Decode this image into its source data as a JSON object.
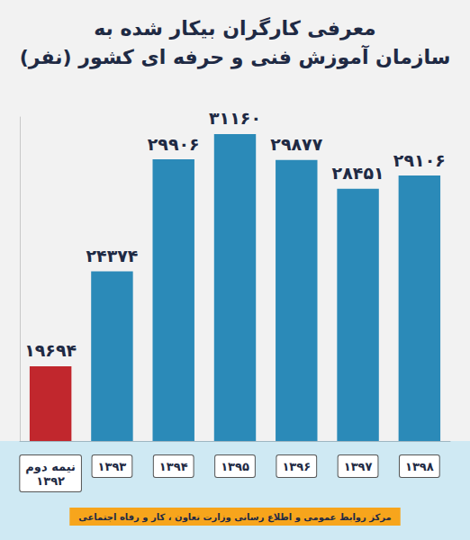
{
  "chart_data": {
    "type": "bar",
    "title": "معرفی کارگران بیکار شده به\nسازمان آموزش فنی و حرفه ای کشور (نفر)",
    "categories": [
      "نیمه دوم ۱۳۹۲",
      "۱۳۹۳",
      "۱۳۹۴",
      "۱۳۹۵",
      "۱۳۹۶",
      "۱۳۹۷",
      "۱۳۹۸"
    ],
    "values": [
      19694,
      24374,
      29906,
      31160,
      29877,
      28451,
      29106
    ],
    "value_labels": [
      "۱۹۶۹۴",
      "۲۴۳۷۴",
      "۲۹۹۰۶",
      "۳۱۱۶۰",
      "۲۹۸۷۷",
      "۲۸۴۵۱",
      "۲۹۱۰۶"
    ],
    "colors": [
      "#c1272d",
      "#2b8ab8",
      "#2b8ab8",
      "#2b8ab8",
      "#2b8ab8",
      "#2b8ab8",
      "#2b8ab8"
    ],
    "ylim": [
      16000,
      32000
    ],
    "data_labels": true,
    "tick_labels": "x",
    "grid": false,
    "source": "مرکز روابط عمومی و اطلاع رسانی وزارت تعاون ، کار و رفاه اجتماعی"
  }
}
